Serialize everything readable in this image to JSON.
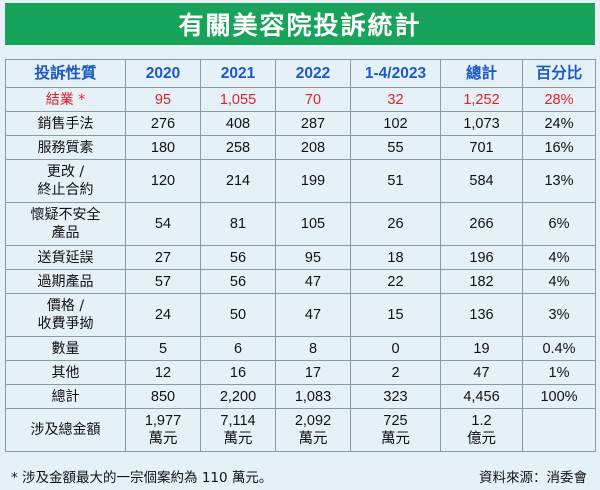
{
  "chart_data": {
    "type": "table",
    "title": "有關美容院投訴統計",
    "columns": [
      "投訴性質",
      "2020",
      "2021",
      "2022",
      "1-4/2023",
      "總計",
      "百分比"
    ],
    "rows": [
      {
        "category": "結業 *",
        "values": [
          "95",
          "1,055",
          "70",
          "32",
          "1,252",
          "28%"
        ],
        "highlight": true
      },
      {
        "category": "銷售手法",
        "values": [
          "276",
          "408",
          "287",
          "102",
          "1,073",
          "24%"
        ]
      },
      {
        "category": "服務質素",
        "values": [
          "180",
          "258",
          "208",
          "55",
          "701",
          "16%"
        ]
      },
      {
        "category": "更改 /\n終止合約",
        "values": [
          "120",
          "214",
          "199",
          "51",
          "584",
          "13%"
        ]
      },
      {
        "category": "懷疑不安全\n產品",
        "values": [
          "54",
          "81",
          "105",
          "26",
          "266",
          "6%"
        ]
      },
      {
        "category": "送貨延誤",
        "values": [
          "27",
          "56",
          "95",
          "18",
          "196",
          "4%"
        ]
      },
      {
        "category": "過期產品",
        "values": [
          "57",
          "56",
          "47",
          "22",
          "182",
          "4%"
        ]
      },
      {
        "category": "價格 /\n收費爭拗",
        "values": [
          "24",
          "50",
          "47",
          "15",
          "136",
          "3%"
        ]
      },
      {
        "category": "數量",
        "values": [
          "5",
          "6",
          "8",
          "0",
          "19",
          "0.4%"
        ]
      },
      {
        "category": "其他",
        "values": [
          "12",
          "16",
          "17",
          "2",
          "47",
          "1%"
        ]
      },
      {
        "category": "總計",
        "values": [
          "850",
          "2,200",
          "1,083",
          "323",
          "4,456",
          "100%"
        ]
      },
      {
        "category": "涉及總金額",
        "values": [
          "1,977\n萬元",
          "7,114\n萬元",
          "2,092\n萬元",
          "725\n萬元",
          "1.2\n億元",
          ""
        ]
      }
    ],
    "footnote": "* 涉及金額最大的一宗個案約為 110 萬元。",
    "source": "資料來源：消委會",
    "colors": {
      "title_bg": "#17a35a",
      "header_text": "#1c59c7",
      "highlight_text": "#e0202a",
      "background": "#e6f1f7"
    }
  }
}
